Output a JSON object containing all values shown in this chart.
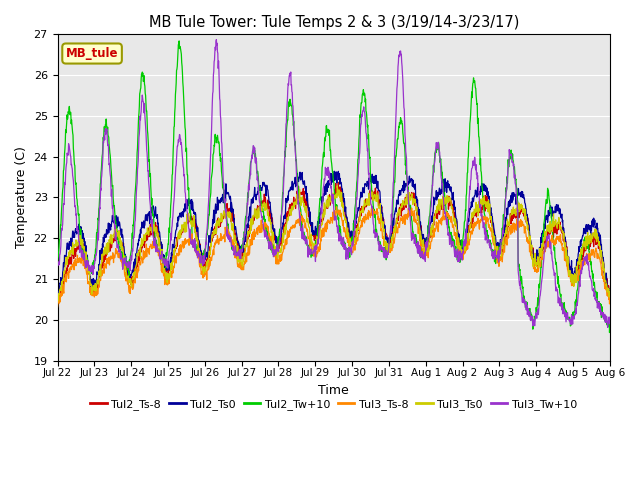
{
  "title": "MB Tule Tower: Tule Temps 2 & 3 (3/19/14-3/23/17)",
  "xlabel": "Time",
  "ylabel": "Temperature (C)",
  "ylim": [
    19.0,
    27.0
  ],
  "yticks": [
    19.0,
    20.0,
    21.0,
    22.0,
    23.0,
    24.0,
    25.0,
    26.0,
    27.0
  ],
  "xtick_labels": [
    "Jul 22",
    "Jul 23",
    "Jul 24",
    "Jul 25",
    "Jul 26",
    "Jul 27",
    "Jul 28",
    "Jul 29",
    "Jul 30",
    "Jul 31",
    "Aug 1",
    "Aug 2",
    "Aug 3",
    "Aug 4",
    "Aug 5",
    "Aug 6"
  ],
  "legend_label": "MB_tule",
  "series_labels": [
    "Tul2_Ts-8",
    "Tul2_Ts0",
    "Tul2_Tw+10",
    "Tul3_Ts-8",
    "Tul3_Ts0",
    "Tul3_Tw+10"
  ],
  "series_colors": [
    "#cc0000",
    "#000099",
    "#00cc00",
    "#ff8800",
    "#cccc00",
    "#9933cc"
  ],
  "background_color": "#e8e8e8",
  "grid_color": "#ffffff",
  "figwidth": 6.4,
  "figheight": 4.8,
  "dpi": 100
}
